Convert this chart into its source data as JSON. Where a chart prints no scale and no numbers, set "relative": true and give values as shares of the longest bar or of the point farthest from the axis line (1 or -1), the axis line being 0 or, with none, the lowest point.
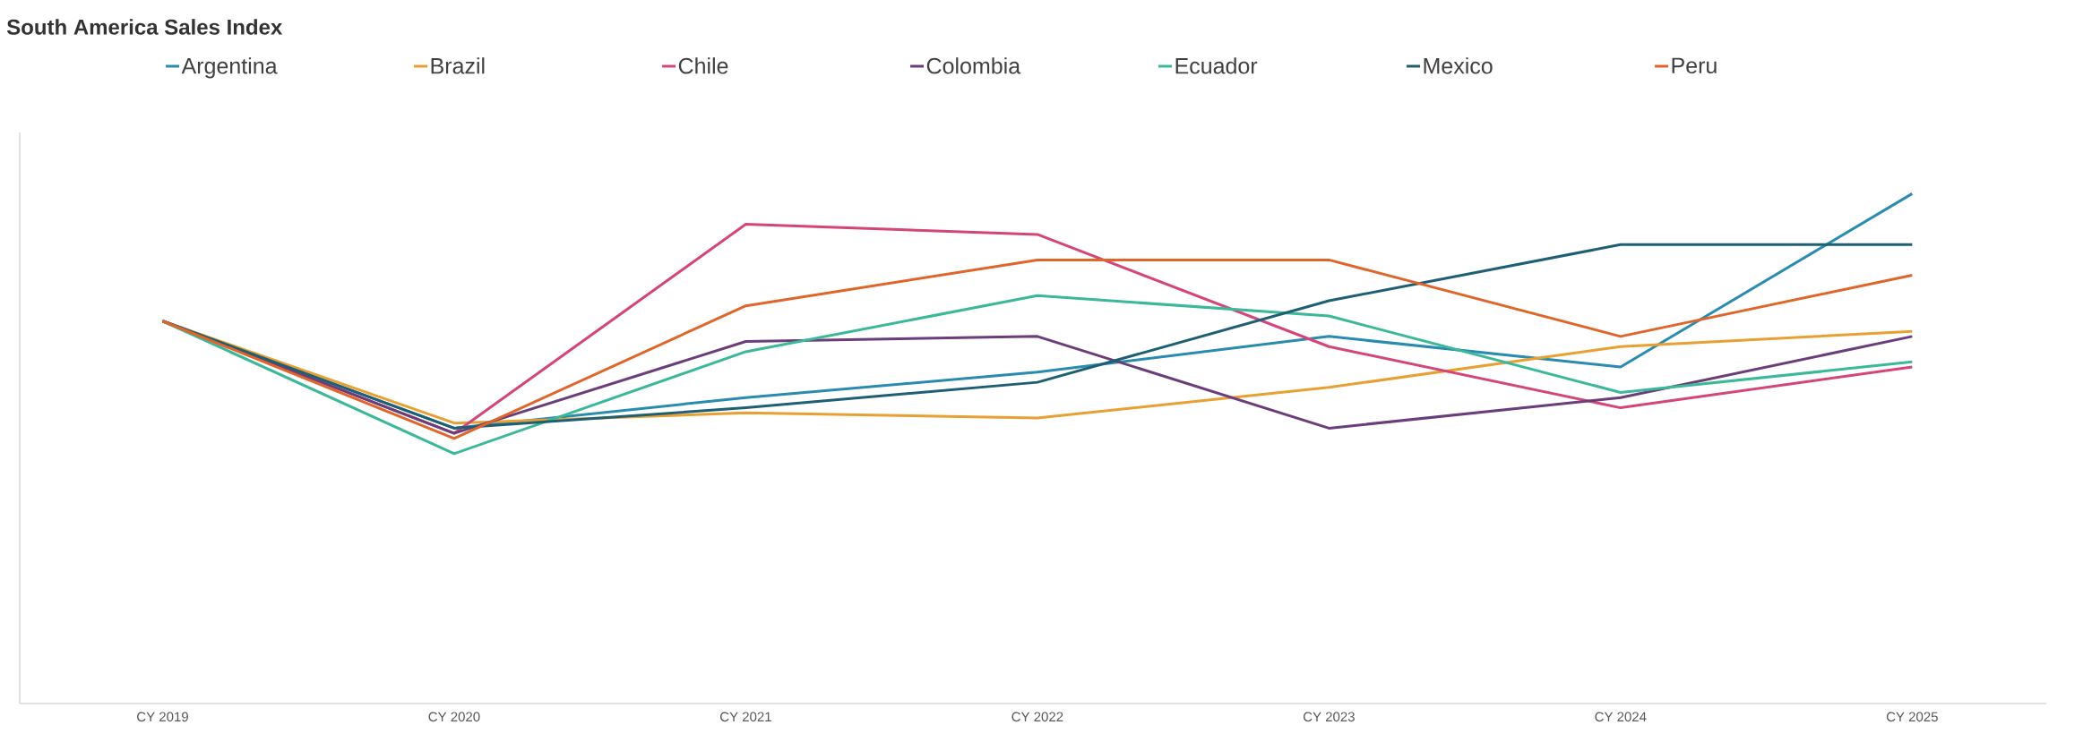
{
  "chart_data": {
    "type": "line",
    "title": "South America Sales Index",
    "relative": true,
    "legend": "top",
    "grid": false,
    "marker": "none",
    "categories": [
      "CY 2019",
      "CY 2020",
      "CY 2021",
      "CY 2022",
      "CY 2023",
      "CY 2024",
      "CY 2025"
    ],
    "series": [
      {
        "name": "Argentina",
        "color": "#2a8bb0",
        "values": [
          0.75,
          0.54,
          0.6,
          0.65,
          0.72,
          0.66,
          1
        ]
      },
      {
        "name": "Brazil",
        "color": "#e8a033",
        "values": [
          0.75,
          0.55,
          0.57,
          0.56,
          0.62,
          0.7,
          0.73
        ]
      },
      {
        "name": "Chile",
        "color": "#d4457a",
        "values": [
          0.75,
          0.53,
          0.94,
          0.92,
          0.7,
          0.58,
          0.66
        ]
      },
      {
        "name": "Colombia",
        "color": "#6b3d7a",
        "values": [
          0.75,
          0.53,
          0.71,
          0.72,
          0.54,
          0.6,
          0.72
        ]
      },
      {
        "name": "Ecuador",
        "color": "#3bb89a",
        "values": [
          0.75,
          0.49,
          0.69,
          0.8,
          0.76,
          0.61,
          0.67
        ]
      },
      {
        "name": "Mexico",
        "color": "#1f5f73",
        "values": [
          0.75,
          0.54,
          0.58,
          0.63,
          0.79,
          0.9,
          0.9
        ]
      },
      {
        "name": "Peru",
        "color": "#e0652a",
        "values": [
          0.75,
          0.52,
          0.78,
          0.87,
          0.87,
          0.72,
          0.84
        ]
      }
    ]
  }
}
